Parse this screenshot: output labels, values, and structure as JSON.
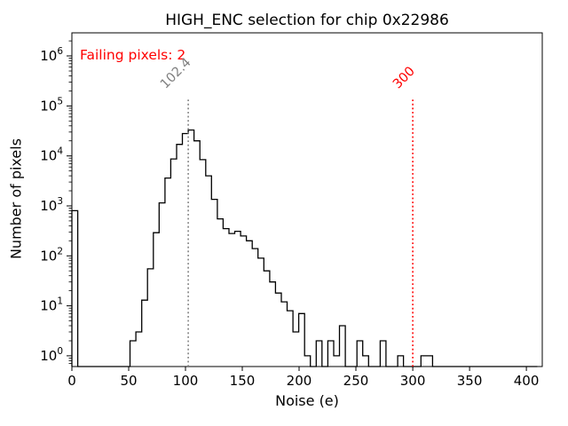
{
  "figure": {
    "title": "HIGH_ENC selection for chip 0x22986"
  },
  "axes": {
    "xlabel": "Noise (e)",
    "ylabel": "Number of pixels"
  },
  "annotations": {
    "failing_pixels": "Failing pixels: 2",
    "mean_line_label": "102.4",
    "threshold_line_label": "300"
  },
  "colors": {
    "hist_line": "#000000",
    "mean_line": "#7f7f7f",
    "threshold_line": "#ff0000",
    "annotation_red": "#ff0000",
    "text": "#000000",
    "background": "#ffffff"
  },
  "chart_data": {
    "type": "bar",
    "style": "step-histogram-outline",
    "title": "HIGH_ENC selection for chip 0x22986",
    "xlabel": "Noise (e)",
    "ylabel": "Number of pixels",
    "x_scale": "linear",
    "y_scale": "log",
    "xlim": [
      0,
      414
    ],
    "ylim": [
      0.61,
      2900000
    ],
    "xticks": [
      0,
      50,
      100,
      150,
      200,
      250,
      300,
      350,
      400
    ],
    "ytick_exponents": [
      0,
      1,
      2,
      3,
      4,
      5,
      6
    ],
    "grid": false,
    "legend": false,
    "bin_start": 0,
    "bin_width": 5.12,
    "counts": [
      800,
      0,
      0,
      0,
      0,
      0,
      0,
      0,
      0,
      0,
      2,
      3,
      13,
      55,
      290,
      1150,
      3600,
      8700,
      17000,
      28000,
      33000,
      20000,
      8400,
      4000,
      1350,
      550,
      350,
      280,
      310,
      250,
      200,
      140,
      90,
      50,
      30,
      18,
      12,
      8,
      3,
      7,
      1,
      0,
      2,
      0,
      2,
      1,
      4,
      0,
      0,
      2,
      1,
      0,
      0,
      2,
      0,
      0,
      1,
      0,
      0,
      0,
      1,
      1,
      0,
      0
    ],
    "trailing_baseline_to": 409.6,
    "vlines": [
      {
        "x": 102.4,
        "label": "102.4",
        "color": "#7f7f7f",
        "style": "dotted"
      },
      {
        "x": 300,
        "label": "300",
        "color": "#ff0000",
        "style": "dotted"
      }
    ],
    "failing_pixels": 2
  }
}
